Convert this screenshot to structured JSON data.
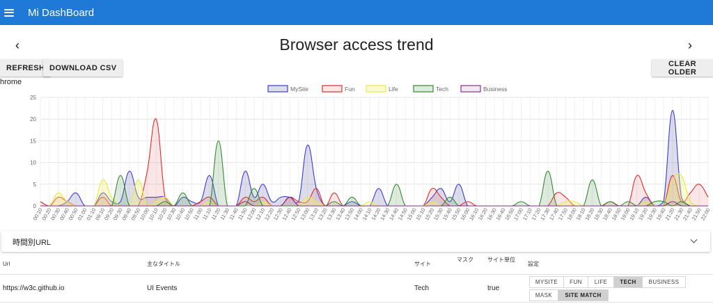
{
  "app": {
    "title": "Mi DashBoard"
  },
  "page": {
    "title": "Browser access trend",
    "prev_icon": "chevron-left-icon",
    "next_icon": "chevron-right-icon"
  },
  "toolbar": {
    "refresh_label": "REFRESH",
    "download_label": "DOWNLOAD CSV",
    "clear_label": "CLEAR OLDER"
  },
  "chart_section_label": "hrome",
  "chart_data": {
    "type": "area",
    "title": "",
    "xlabel": "",
    "ylabel": "",
    "ylim": [
      0,
      25
    ],
    "yticks": [
      0,
      5,
      10,
      15,
      20,
      25
    ],
    "grid": true,
    "legend": "top",
    "x": [
      "00:10",
      "00:20",
      "00:30",
      "00:40",
      "00:50",
      "01:00",
      "01:10",
      "09:10",
      "09:20",
      "09:30",
      "09:40",
      "09:50",
      "10:00",
      "10:10",
      "10:20",
      "10:30",
      "10:40",
      "10:50",
      "11:00",
      "11:10",
      "11:20",
      "11:30",
      "11:40",
      "11:50",
      "12:00",
      "12:10",
      "12:20",
      "12:30",
      "12:40",
      "12:50",
      "13:00",
      "13:10",
      "13:20",
      "13:30",
      "13:40",
      "13:50",
      "14:00",
      "14:10",
      "14:20",
      "14:30",
      "14:40",
      "14:50",
      "15:00",
      "15:10",
      "15:20",
      "15:30",
      "15:40",
      "15:50",
      "16:00",
      "16:10",
      "16:20",
      "16:30",
      "16:40",
      "16:50",
      "17:00",
      "17:10",
      "17:20",
      "17:30",
      "17:40",
      "17:50",
      "18:00",
      "18:10",
      "18:20",
      "18:30",
      "18:40",
      "18:50",
      "19:00",
      "19:10",
      "19:20",
      "19:30",
      "19:40",
      "21:20",
      "21:30",
      "21:40",
      "21:50",
      "22:00"
    ],
    "series": [
      {
        "name": "MySite",
        "color": "#3b3bd6",
        "fill": "rgba(130,130,180,0.28)",
        "values": [
          0,
          0,
          0,
          1,
          3,
          0,
          0,
          3,
          1,
          1,
          8,
          2,
          2,
          2,
          2,
          0,
          2,
          1,
          1,
          7,
          0,
          0,
          0,
          8,
          2,
          5,
          1,
          2,
          2,
          1,
          14,
          4,
          0,
          0,
          0,
          1,
          0,
          0,
          4,
          0,
          0,
          0,
          0,
          0,
          2,
          4,
          1,
          5,
          0,
          0,
          0,
          0,
          0,
          0,
          0,
          0,
          0,
          0,
          0,
          0,
          0,
          0,
          0,
          0,
          0,
          0,
          0,
          0,
          2,
          0,
          1,
          22,
          2,
          0,
          0,
          0
        ]
      },
      {
        "name": "Fun",
        "color": "#e02b2b",
        "fill": "rgba(220,90,90,0.15)",
        "values": [
          1,
          0,
          2,
          1,
          0,
          0,
          0,
          2,
          0,
          0,
          0,
          0,
          8,
          20,
          2,
          0,
          0,
          0,
          1,
          2,
          0,
          0,
          0,
          2,
          1,
          2,
          0,
          0,
          2,
          1,
          1,
          4,
          0,
          3,
          0,
          0,
          0,
          0,
          0,
          0,
          0,
          0,
          0,
          0,
          4,
          2,
          0,
          0,
          1,
          0,
          0,
          0,
          0,
          0,
          0,
          0,
          0,
          0,
          3,
          2,
          0,
          0,
          0,
          0,
          1,
          0,
          0,
          7,
          3,
          0,
          0,
          7,
          1,
          3,
          5,
          2
        ]
      },
      {
        "name": "Life",
        "color": "#e8e84a",
        "fill": "rgba(240,240,120,0.35)",
        "values": [
          0,
          0,
          3,
          1,
          0,
          0,
          0,
          6,
          2,
          0,
          0,
          6,
          0,
          1,
          2,
          0,
          0,
          0,
          0,
          1,
          0,
          0,
          0,
          1,
          0,
          1,
          0,
          0,
          0,
          0,
          2,
          1,
          0,
          0,
          0,
          0,
          0,
          1,
          0,
          0,
          0,
          0,
          0,
          0,
          1,
          0,
          0,
          0,
          0,
          0,
          0,
          0,
          0,
          0,
          0,
          0,
          0,
          0,
          0,
          1,
          1,
          0,
          0,
          0,
          0,
          0,
          0,
          0,
          1,
          0,
          0,
          6,
          7,
          1,
          0,
          0
        ]
      },
      {
        "name": "Tech",
        "color": "#2e8b2e",
        "fill": "rgba(100,160,100,0.22)",
        "values": [
          0,
          0,
          0,
          0,
          0,
          0,
          0,
          0,
          0,
          7,
          0,
          0,
          0,
          0,
          1,
          0,
          3,
          0,
          0,
          0,
          15,
          0,
          0,
          0,
          4,
          0,
          0,
          0,
          0,
          0,
          0,
          0,
          0,
          1,
          0,
          2,
          0,
          0,
          0,
          0,
          5,
          0,
          0,
          0,
          0,
          0,
          2,
          0,
          0,
          0,
          0,
          0,
          0,
          0,
          1,
          0,
          0,
          8,
          0,
          0,
          0,
          0,
          6,
          0,
          1,
          0,
          1,
          0,
          0,
          1,
          1,
          0,
          1,
          0,
          0,
          0
        ]
      },
      {
        "name": "Business",
        "color": "#8a2e8a",
        "fill": "rgba(170,100,170,0.15)",
        "values": [
          0,
          0,
          0,
          0,
          0,
          0,
          0,
          0,
          0,
          0,
          0,
          0,
          0,
          0,
          0,
          0,
          0,
          0,
          0,
          0,
          0,
          0,
          0,
          1,
          0,
          0,
          0,
          0,
          2,
          0,
          0,
          0,
          0,
          0,
          0,
          0,
          0,
          0,
          0,
          0,
          0,
          0,
          0,
          0,
          0,
          0,
          0,
          0,
          0,
          0,
          0,
          0,
          0,
          0,
          0,
          0,
          0,
          0,
          0,
          0,
          0,
          0,
          0,
          0,
          0,
          0,
          0,
          0,
          0,
          0,
          0,
          1,
          0,
          0,
          0,
          0
        ]
      }
    ]
  },
  "accordion": {
    "title": "時間別URL",
    "icon": "chevron-down-icon"
  },
  "table": {
    "headers": {
      "url": "Url",
      "title": "主なタイトル",
      "site": "サイト",
      "mask": "マスク",
      "site_unit": "サイト単位",
      "settings": "設定"
    },
    "rows": [
      {
        "url": "https://w3c.github.io",
        "title": "UI Events",
        "site": "Tech",
        "site_unit": "true",
        "options": [
          "MYSITE",
          "FUN",
          "LIFE",
          "TECH",
          "BUSINESS"
        ],
        "selected": "TECH",
        "match_options": [
          "MASK",
          "SITE MATCH"
        ],
        "match_selected": "SITE MATCH"
      }
    ]
  }
}
